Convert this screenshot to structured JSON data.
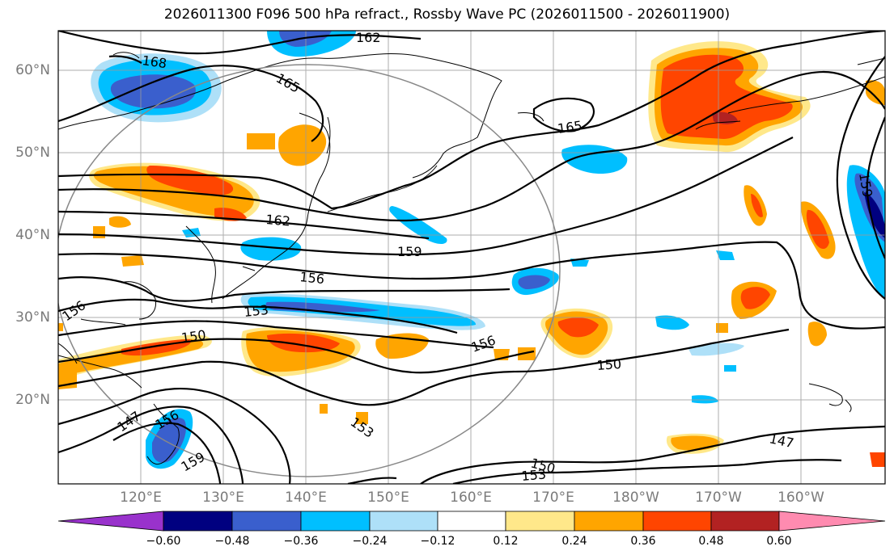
{
  "title": "2026011300 F096 500 hPa refract., Rossby Wave PC (2026011500 - 2026011900)",
  "lat_labels": [
    "60°N",
    "50°N",
    "40°N",
    "30°N",
    "20°N"
  ],
  "lon_labels": [
    "120°E",
    "130°E",
    "140°E",
    "150°E",
    "160°E",
    "170°E",
    "180°W",
    "170°W",
    "160°W"
  ],
  "contour_labels": [
    "162",
    "168",
    "165",
    "165",
    "162",
    "159",
    "156",
    "156",
    "153",
    "150",
    "156",
    "150",
    "147",
    "156",
    "159",
    "153",
    "150",
    "153",
    "147",
    "159"
  ],
  "colorbar": {
    "ticks": [
      "−0.60",
      "−0.48",
      "−0.36",
      "−0.24",
      "−0.12",
      "0.12",
      "0.24",
      "0.36",
      "0.48",
      "0.60"
    ],
    "colors": [
      "#9932cc",
      "#000080",
      "#3a5fcd",
      "#00bfff",
      "#aee0f8",
      "#ffffff",
      "#ffe88a",
      "#ffa500",
      "#ff4500",
      "#b22222",
      "#ff8bb0"
    ]
  },
  "shading_colors": {
    "pos_light": "#ffe88a",
    "pos_mid": "#ffa500",
    "pos_strong": "#ff4500",
    "neg_light": "#aee0f8",
    "neg_mid": "#00bfff",
    "neg_strong": "#3a5fcd",
    "neg_max": "#000080"
  }
}
